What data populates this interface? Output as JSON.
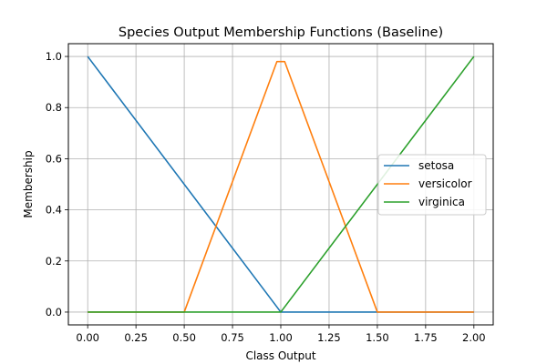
{
  "chart_data": {
    "type": "line",
    "title": "Species Output Membership Functions (Baseline)",
    "xlabel": "Class Output",
    "ylabel": "Membership",
    "xlim": [
      -0.1,
      2.1
    ],
    "ylim": [
      -0.05,
      1.05
    ],
    "x_ticks": [
      "0.00",
      "0.25",
      "0.50",
      "0.75",
      "1.00",
      "1.25",
      "1.50",
      "1.75",
      "2.00"
    ],
    "y_ticks": [
      "0.0",
      "0.2",
      "0.4",
      "0.6",
      "0.8",
      "1.0"
    ],
    "grid": true,
    "legend_position": "center-right",
    "series": [
      {
        "name": "setosa",
        "color": "#1f77b4",
        "points": [
          [
            0.0,
            1.0
          ],
          [
            1.0,
            0.0
          ],
          [
            2.0,
            0.0
          ]
        ]
      },
      {
        "name": "versicolor",
        "color": "#ff7f0e",
        "points": [
          [
            0.0,
            0.0
          ],
          [
            0.5,
            0.0
          ],
          [
            0.98,
            0.98
          ],
          [
            1.02,
            0.98
          ],
          [
            1.5,
            0.0
          ],
          [
            2.0,
            0.0
          ]
        ]
      },
      {
        "name": "virginica",
        "color": "#2ca02c",
        "points": [
          [
            0.0,
            0.0
          ],
          [
            1.0,
            0.0
          ],
          [
            2.0,
            1.0
          ]
        ]
      }
    ]
  }
}
